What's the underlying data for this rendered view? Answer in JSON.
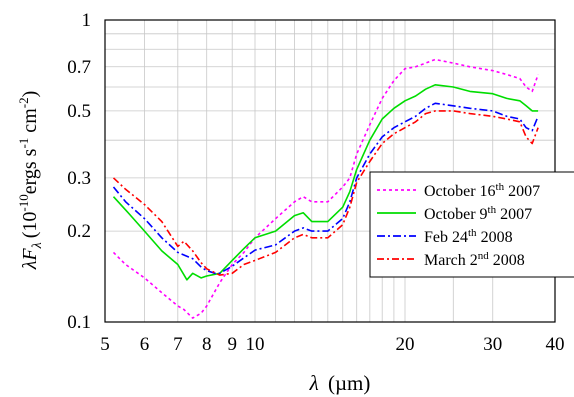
{
  "chart_data": {
    "type": "line",
    "xlabel_symbol": "λ",
    "xlabel_unit": "(µm)",
    "ylabel_prefix": "λF",
    "ylabel_sub": "λ",
    "ylabel_unit_a": "(10",
    "ylabel_unit_b": "-10",
    "ylabel_unit_c": "ergs s",
    "ylabel_unit_d": "-1",
    "ylabel_unit_e": " cm",
    "ylabel_unit_f": "-2",
    "ylabel_unit_g": ")",
    "x_scale": "log",
    "y_scale": "log",
    "xlim": [
      5,
      40
    ],
    "ylim": [
      0.1,
      1
    ],
    "x_ticks": [
      5,
      6,
      7,
      8,
      9,
      10,
      20,
      30,
      40
    ],
    "x_tick_labels": [
      "5",
      "6",
      "7",
      "8",
      "9",
      "10",
      "20",
      "30",
      "40"
    ],
    "y_ticks": [
      0.1,
      0.2,
      0.3,
      0.5,
      0.7,
      1
    ],
    "y_tick_labels": [
      "0.1",
      "0.2",
      "0.3",
      "0.5",
      "0.7",
      "1"
    ],
    "grid": true,
    "legend_position": "lower-right",
    "series": [
      {
        "name": "October 16th 2007",
        "legend_parts": [
          "October 16",
          "th",
          " 2007"
        ],
        "color": "#ff00ff",
        "dash": "3,3",
        "points": [
          [
            5.2,
            0.17
          ],
          [
            5.5,
            0.155
          ],
          [
            6.0,
            0.14
          ],
          [
            6.5,
            0.125
          ],
          [
            7.0,
            0.113
          ],
          [
            7.2,
            0.11
          ],
          [
            7.5,
            0.103
          ],
          [
            7.8,
            0.107
          ],
          [
            8.0,
            0.113
          ],
          [
            8.5,
            0.135
          ],
          [
            9.0,
            0.155
          ],
          [
            9.5,
            0.17
          ],
          [
            10.0,
            0.19
          ],
          [
            11.0,
            0.22
          ],
          [
            12.0,
            0.25
          ],
          [
            12.5,
            0.26
          ],
          [
            13.0,
            0.25
          ],
          [
            14.0,
            0.25
          ],
          [
            15.0,
            0.28
          ],
          [
            15.5,
            0.3
          ],
          [
            16.0,
            0.36
          ],
          [
            17.0,
            0.45
          ],
          [
            18.0,
            0.55
          ],
          [
            19.0,
            0.63
          ],
          [
            20.0,
            0.69
          ],
          [
            21.0,
            0.7
          ],
          [
            22.0,
            0.72
          ],
          [
            23.0,
            0.74
          ],
          [
            25.0,
            0.72
          ],
          [
            27.0,
            0.7
          ],
          [
            30.0,
            0.68
          ],
          [
            32.0,
            0.66
          ],
          [
            34.0,
            0.64
          ],
          [
            35.0,
            0.6
          ],
          [
            36.0,
            0.58
          ],
          [
            37.0,
            0.66
          ]
        ]
      },
      {
        "name": "October 9th 2007",
        "legend_parts": [
          "October 9",
          "th",
          " 2007"
        ],
        "color": "#00dd00",
        "dash": "",
        "points": [
          [
            5.2,
            0.26
          ],
          [
            5.5,
            0.235
          ],
          [
            6.0,
            0.2
          ],
          [
            6.5,
            0.172
          ],
          [
            7.0,
            0.155
          ],
          [
            7.3,
            0.138
          ],
          [
            7.5,
            0.145
          ],
          [
            7.8,
            0.14
          ],
          [
            8.0,
            0.142
          ],
          [
            8.5,
            0.145
          ],
          [
            9.0,
            0.16
          ],
          [
            9.5,
            0.175
          ],
          [
            10.0,
            0.19
          ],
          [
            11.0,
            0.2
          ],
          [
            12.0,
            0.225
          ],
          [
            12.5,
            0.23
          ],
          [
            13.0,
            0.215
          ],
          [
            14.0,
            0.215
          ],
          [
            15.0,
            0.24
          ],
          [
            15.5,
            0.27
          ],
          [
            16.0,
            0.32
          ],
          [
            17.0,
            0.4
          ],
          [
            18.0,
            0.47
          ],
          [
            19.0,
            0.51
          ],
          [
            20.0,
            0.54
          ],
          [
            21.0,
            0.56
          ],
          [
            22.0,
            0.59
          ],
          [
            23.0,
            0.61
          ],
          [
            25.0,
            0.6
          ],
          [
            27.0,
            0.58
          ],
          [
            30.0,
            0.57
          ],
          [
            32.0,
            0.55
          ],
          [
            34.0,
            0.54
          ],
          [
            35.0,
            0.52
          ],
          [
            36.0,
            0.5
          ],
          [
            37.0,
            0.5
          ]
        ]
      },
      {
        "name": "Feb 24th 2008",
        "legend_parts": [
          "Feb 24",
          "th",
          " 2008"
        ],
        "color": "#0000ff",
        "dash": "8,3,2,3",
        "points": [
          [
            5.2,
            0.28
          ],
          [
            5.5,
            0.25
          ],
          [
            6.0,
            0.22
          ],
          [
            6.5,
            0.19
          ],
          [
            7.0,
            0.17
          ],
          [
            7.5,
            0.162
          ],
          [
            7.8,
            0.152
          ],
          [
            8.0,
            0.148
          ],
          [
            8.3,
            0.145
          ],
          [
            8.5,
            0.145
          ],
          [
            9.0,
            0.153
          ],
          [
            9.5,
            0.163
          ],
          [
            10.0,
            0.173
          ],
          [
            11.0,
            0.18
          ],
          [
            12.0,
            0.2
          ],
          [
            12.5,
            0.205
          ],
          [
            13.0,
            0.2
          ],
          [
            14.0,
            0.2
          ],
          [
            15.0,
            0.22
          ],
          [
            15.5,
            0.25
          ],
          [
            16.0,
            0.3
          ],
          [
            17.0,
            0.36
          ],
          [
            18.0,
            0.41
          ],
          [
            19.0,
            0.44
          ],
          [
            20.0,
            0.46
          ],
          [
            21.0,
            0.48
          ],
          [
            22.0,
            0.51
          ],
          [
            23.0,
            0.53
          ],
          [
            25.0,
            0.52
          ],
          [
            27.0,
            0.51
          ],
          [
            30.0,
            0.5
          ],
          [
            32.0,
            0.48
          ],
          [
            34.0,
            0.47
          ],
          [
            35.0,
            0.44
          ],
          [
            36.0,
            0.43
          ],
          [
            37.0,
            0.48
          ]
        ]
      },
      {
        "name": "March 2nd 2008",
        "legend_parts": [
          "March 2",
          "nd",
          " 2008"
        ],
        "color": "#ff0000",
        "dash": "7,3,2,3",
        "points": [
          [
            5.2,
            0.3
          ],
          [
            5.5,
            0.275
          ],
          [
            6.0,
            0.245
          ],
          [
            6.5,
            0.215
          ],
          [
            7.0,
            0.178
          ],
          [
            7.2,
            0.185
          ],
          [
            7.5,
            0.172
          ],
          [
            7.8,
            0.157
          ],
          [
            8.0,
            0.15
          ],
          [
            8.5,
            0.143
          ],
          [
            9.0,
            0.145
          ],
          [
            9.5,
            0.155
          ],
          [
            10.0,
            0.16
          ],
          [
            11.0,
            0.17
          ],
          [
            12.0,
            0.19
          ],
          [
            12.5,
            0.195
          ],
          [
            13.0,
            0.19
          ],
          [
            14.0,
            0.19
          ],
          [
            15.0,
            0.21
          ],
          [
            15.5,
            0.24
          ],
          [
            16.0,
            0.29
          ],
          [
            17.0,
            0.34
          ],
          [
            18.0,
            0.39
          ],
          [
            19.0,
            0.42
          ],
          [
            20.0,
            0.44
          ],
          [
            21.0,
            0.46
          ],
          [
            22.0,
            0.49
          ],
          [
            23.0,
            0.5
          ],
          [
            25.0,
            0.5
          ],
          [
            27.0,
            0.49
          ],
          [
            30.0,
            0.48
          ],
          [
            32.0,
            0.47
          ],
          [
            34.0,
            0.46
          ],
          [
            35.0,
            0.41
          ],
          [
            36.0,
            0.39
          ],
          [
            37.0,
            0.44
          ]
        ]
      }
    ]
  }
}
